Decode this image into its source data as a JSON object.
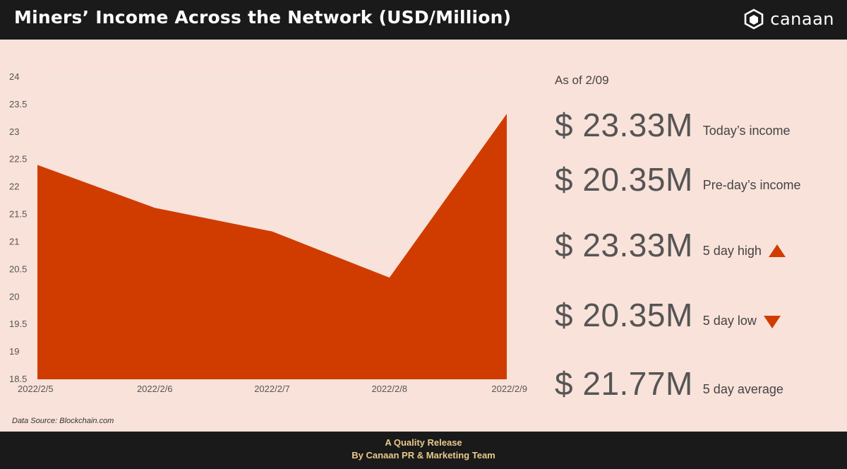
{
  "header": {
    "title": "Miners’ Income Across the Network (USD/Million)",
    "logo_text": "canaan"
  },
  "source": "Data Source: Blockchain.com",
  "stats": {
    "as_of": "As of 2/09",
    "items": [
      {
        "value": "$ 23.33M",
        "label": "Today’s income",
        "marker": ""
      },
      {
        "value": "$ 20.35M",
        "label": "Pre-day’s income",
        "marker": ""
      },
      {
        "value": "$ 23.33M",
        "label": "5 day high",
        "marker": "triangle-up-icon"
      },
      {
        "value": "$ 20.35M",
        "label": "5 day low",
        "marker": "triangle-down-icon"
      },
      {
        "value": "$ 21.77M",
        "label": "5 day average",
        "marker": ""
      }
    ]
  },
  "footer": {
    "line1": "A Quality Release",
    "line2": "By Canaan PR & Marketing Team"
  },
  "colors": {
    "area": "#d03c00",
    "background": "#f9e2da",
    "header": "#1a1a1a",
    "footer_text": "#e9c98b"
  },
  "chart_data": {
    "type": "area",
    "categories": [
      "2022/2/5",
      "2022/2/6",
      "2022/2/7",
      "2022/2/8",
      "2022/2/9"
    ],
    "values": [
      22.4,
      21.62,
      21.19,
      20.35,
      23.33
    ],
    "yticks": [
      "18.5",
      "19",
      "19.5",
      "20",
      "20.5",
      "21",
      "21.5",
      "22",
      "22.5",
      "23",
      "23.5",
      "24"
    ],
    "ylim": [
      18.5,
      24
    ],
    "grid": true,
    "legend": "none"
  }
}
